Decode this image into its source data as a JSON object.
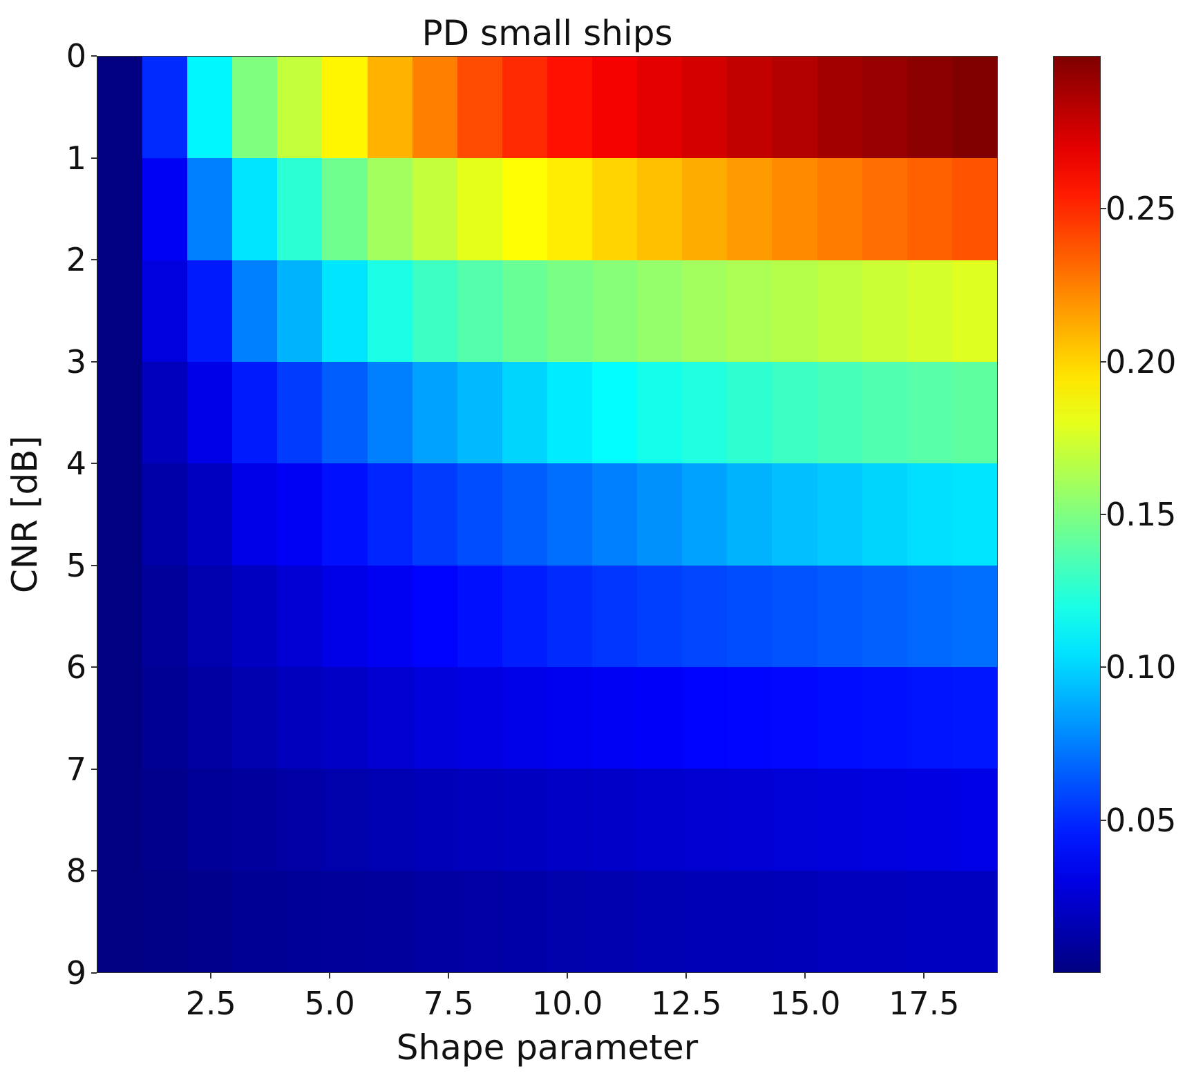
{
  "chart": {
    "title": "PD small ships",
    "xlabel": "Shape parameter",
    "ylabel": "CNR [dB]",
    "yticks": [
      "0",
      "1",
      "2",
      "3",
      "4",
      "5",
      "6",
      "7",
      "8",
      "9"
    ],
    "xticks": [
      {
        "label": "2.5",
        "value": 2.5
      },
      {
        "label": "5.0",
        "value": 5.0
      },
      {
        "label": "7.5",
        "value": 7.5
      },
      {
        "label": "10.0",
        "value": 10.0
      },
      {
        "label": "12.5",
        "value": 12.5
      },
      {
        "label": "15.0",
        "value": 15.0
      },
      {
        "label": "17.5",
        "value": 17.5
      }
    ],
    "colorbar_ticks": [
      {
        "label": "0.25",
        "value": 0.25
      },
      {
        "label": "0.20",
        "value": 0.2
      },
      {
        "label": "0.15",
        "value": 0.15
      },
      {
        "label": "0.10",
        "value": 0.1
      },
      {
        "label": "0.05",
        "value": 0.05
      }
    ]
  },
  "chart_data": {
    "type": "heatmap",
    "title": "PD small ships",
    "xlabel": "Shape parameter",
    "ylabel": "CNR [dB]",
    "colormap": "jet",
    "xlim": [
      0.1,
      19.05
    ],
    "ylim": [
      9,
      0
    ],
    "x_tick_labels": [
      "2.5",
      "5.0",
      "7.5",
      "10.0",
      "12.5",
      "15.0",
      "17.5"
    ],
    "y_tick_labels": [
      "0",
      "1",
      "2",
      "3",
      "4",
      "5",
      "6",
      "7",
      "8",
      "9"
    ],
    "colorbar": {
      "min": 0.0,
      "max": 0.3,
      "ticks": [
        0.05,
        0.1,
        0.15,
        0.2,
        0.25
      ]
    },
    "grid": false,
    "n_rows": 9,
    "n_cols": 20,
    "values": [
      [
        0.0,
        0.05,
        0.11,
        0.15,
        0.17,
        0.19,
        0.21,
        0.225,
        0.24,
        0.25,
        0.258,
        0.265,
        0.27,
        0.275,
        0.28,
        0.285,
        0.29,
        0.293,
        0.296,
        0.3
      ],
      [
        0.0,
        0.035,
        0.075,
        0.105,
        0.125,
        0.145,
        0.16,
        0.17,
        0.18,
        0.187,
        0.193,
        0.2,
        0.206,
        0.212,
        0.217,
        0.222,
        0.226,
        0.23,
        0.234,
        0.238
      ],
      [
        0.0,
        0.028,
        0.045,
        0.075,
        0.09,
        0.105,
        0.12,
        0.13,
        0.137,
        0.143,
        0.148,
        0.152,
        0.156,
        0.16,
        0.163,
        0.166,
        0.169,
        0.172,
        0.175,
        0.178
      ],
      [
        0.0,
        0.018,
        0.03,
        0.045,
        0.055,
        0.065,
        0.075,
        0.085,
        0.092,
        0.1,
        0.107,
        0.113,
        0.118,
        0.122,
        0.126,
        0.13,
        0.133,
        0.136,
        0.138,
        0.14
      ],
      [
        0.0,
        0.012,
        0.02,
        0.03,
        0.035,
        0.042,
        0.048,
        0.055,
        0.06,
        0.065,
        0.07,
        0.075,
        0.08,
        0.085,
        0.09,
        0.094,
        0.097,
        0.1,
        0.103,
        0.105
      ],
      [
        0.0,
        0.008,
        0.014,
        0.02,
        0.025,
        0.03,
        0.034,
        0.038,
        0.042,
        0.046,
        0.05,
        0.053,
        0.056,
        0.058,
        0.06,
        0.062,
        0.064,
        0.066,
        0.068,
        0.07
      ],
      [
        0.0,
        0.006,
        0.01,
        0.014,
        0.018,
        0.021,
        0.024,
        0.027,
        0.029,
        0.031,
        0.033,
        0.035,
        0.036,
        0.038,
        0.039,
        0.04,
        0.041,
        0.042,
        0.043,
        0.044
      ],
      [
        0.0,
        0.004,
        0.007,
        0.009,
        0.011,
        0.013,
        0.015,
        0.017,
        0.018,
        0.02,
        0.021,
        0.022,
        0.023,
        0.024,
        0.025,
        0.026,
        0.027,
        0.028,
        0.029,
        0.03
      ],
      [
        0.0,
        0.002,
        0.004,
        0.006,
        0.007,
        0.008,
        0.009,
        0.01,
        0.011,
        0.012,
        0.013,
        0.014,
        0.015,
        0.016,
        0.016,
        0.017,
        0.018,
        0.018,
        0.019,
        0.02
      ]
    ]
  }
}
